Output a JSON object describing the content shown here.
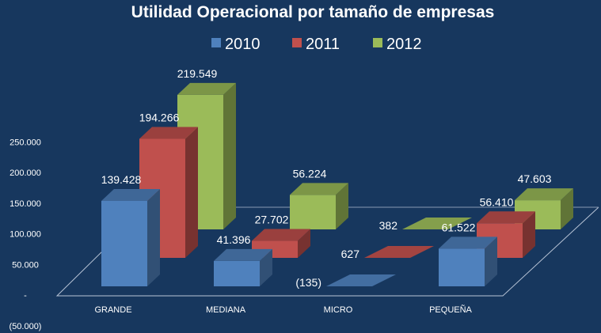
{
  "chart_data": {
    "type": "bar",
    "title": "Utilidad Operacional por tamaño de empresas",
    "categories": [
      "GRANDE",
      "MEDIANA",
      "MICRO",
      "PEQUEÑA"
    ],
    "series": [
      {
        "name": "2010",
        "values": [
          139428,
          41396,
          -135,
          61522
        ],
        "labels": [
          "139.428",
          "41.396",
          "(135)",
          "61.522"
        ],
        "color": "#4f81bd"
      },
      {
        "name": "2011",
        "values": [
          194266,
          27702,
          627,
          56410
        ],
        "labels": [
          "194.266",
          "27.702",
          "627",
          "56.410"
        ],
        "color": "#c0504d"
      },
      {
        "name": "2012",
        "values": [
          219549,
          56224,
          382,
          47603
        ],
        "labels": [
          "219.549",
          "56.224",
          "382",
          "47.603"
        ],
        "color": "#9bbb59"
      }
    ],
    "yticks": [
      250000,
      200000,
      150000,
      100000,
      50000,
      0,
      -50000
    ],
    "ytick_labels": [
      "250.000",
      "200.000",
      "150.000",
      "100.000",
      "50.000",
      "-",
      "(50.000)"
    ],
    "ylim": [
      -50000,
      250000
    ],
    "legend": "top",
    "grid": false
  }
}
